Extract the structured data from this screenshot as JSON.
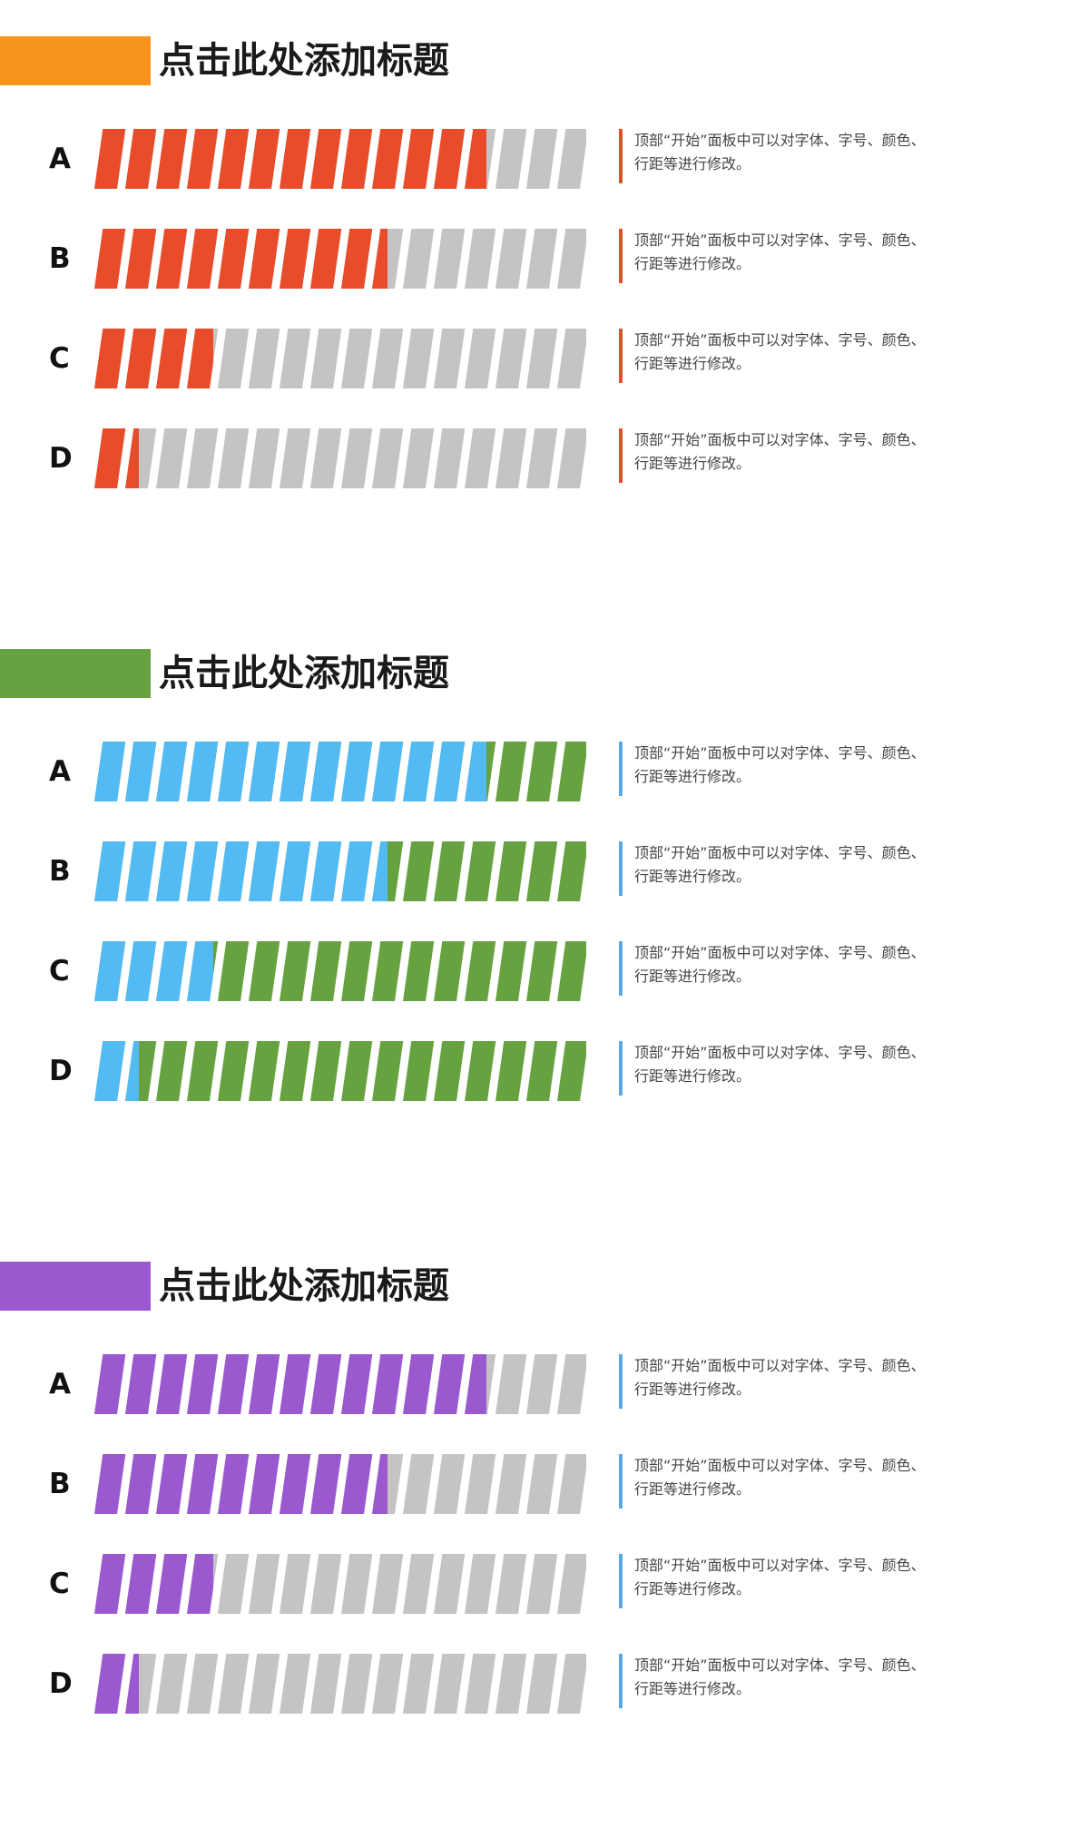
{
  "sections": [
    {
      "title": "点击此处添加标题",
      "accent_color": "#F7941D",
      "fill_color": "#E84C2B",
      "track_color": "#C4C4C4",
      "desc_border_color": "#E84C2B",
      "rows": [
        {
          "label": "A",
          "progress": 0.8,
          "desc_line1": "顶部“开始”面板中可以对字体、字号、颜色、",
          "desc_line2": "行距等进行修改。"
        },
        {
          "label": "B",
          "progress": 0.6,
          "desc_line1": "顶部“开始”面板中可以对字体、字号、颜色、",
          "desc_line2": "行距等进行修改。"
        },
        {
          "label": "C",
          "progress": 0.25,
          "desc_line1": "顶部“开始”面板中可以对字体、字号、颜色、",
          "desc_line2": "行距等进行修改。"
        },
        {
          "label": "D",
          "progress": 0.1,
          "desc_line1": "顶部“开始”面板中可以对字体、字号、颜色、",
          "desc_line2": "行距等进行修改。"
        }
      ]
    },
    {
      "title": "点击此处添加标题",
      "accent_color": "#66A23F",
      "fill_color": "#53BBF4",
      "track_color": "#66A23F",
      "desc_border_color": "#5AA9E6",
      "rows": [
        {
          "label": "A",
          "progress": 0.8,
          "desc_line1": "顶部“开始”面板中可以对字体、字号、颜色、",
          "desc_line2": "行距等进行修改。"
        },
        {
          "label": "B",
          "progress": 0.6,
          "desc_line1": "顶部“开始”面板中可以对字体、字号、颜色、",
          "desc_line2": "行距等进行修改。"
        },
        {
          "label": "C",
          "progress": 0.25,
          "desc_line1": "顶部“开始”面板中可以对字体、字号、颜色、",
          "desc_line2": "行距等进行修改。"
        },
        {
          "label": "D",
          "progress": 0.1,
          "desc_line1": "顶部“开始”面板中可以对字体、字号、颜色、",
          "desc_line2": "行距等进行修改。"
        }
      ]
    },
    {
      "title": "点击此处添加标题",
      "accent_color": "#9B59D0",
      "fill_color": "#9B59D0",
      "track_color": "#C4C4C4",
      "desc_border_color": "#5AA9E6",
      "rows": [
        {
          "label": "A",
          "progress": 0.8,
          "desc_line1": "顶部“开始”面板中可以对字体、字号、颜色、",
          "desc_line2": "行距等进行修改。"
        },
        {
          "label": "B",
          "progress": 0.6,
          "desc_line1": "顶部“开始”面板中可以对字体、字号、颜色、",
          "desc_line2": "行距等进行修改。"
        },
        {
          "label": "C",
          "progress": 0.25,
          "desc_line1": "顶部“开始”面板中可以对字体、字号、颜色、",
          "desc_line2": "行距等进行修改。"
        },
        {
          "label": "D",
          "progress": 0.1,
          "desc_line1": "顶部“开始”面板中可以对字体、字号、颜色、",
          "desc_line2": "行距等进行修改。"
        }
      ]
    }
  ]
}
